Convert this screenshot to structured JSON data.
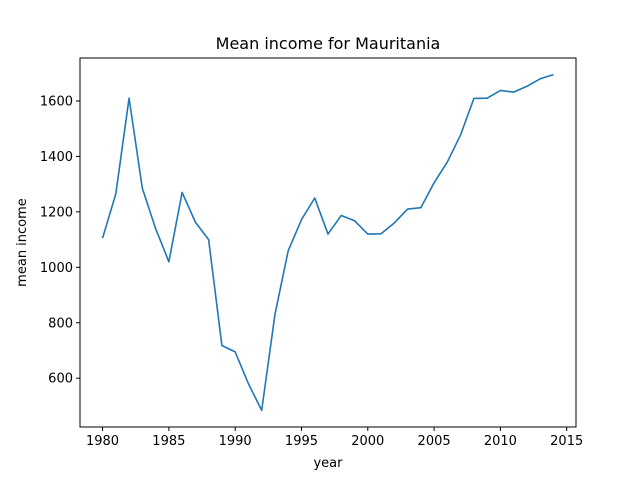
{
  "chart_data": {
    "type": "line",
    "title": "Mean income for Mauritania",
    "xlabel": "year",
    "ylabel": "mean income",
    "xlim": [
      1978.3,
      2015.7
    ],
    "ylim": [
      424,
      1755
    ],
    "xticks": [
      1980,
      1985,
      1990,
      1995,
      2000,
      2005,
      2010,
      2015
    ],
    "yticks": [
      600,
      800,
      1000,
      1200,
      1400,
      1600
    ],
    "grid": false,
    "legend": null,
    "line_color": "#1f77b4",
    "series": [
      {
        "x": [
          1980,
          1981,
          1982,
          1983,
          1984,
          1985,
          1986,
          1987,
          1988,
          1989,
          1990,
          1991,
          1992,
          1993,
          1994,
          1995,
          1996,
          1997,
          1998,
          1999,
          2000,
          2001,
          2002,
          2003,
          2004,
          2005,
          2006,
          2007,
          2008,
          2009,
          2010,
          2011,
          2012,
          2013,
          2014
        ],
        "values": [
          1105,
          1265,
          1610,
          1285,
          1140,
          1020,
          1270,
          1163,
          1100,
          718,
          695,
          580,
          484,
          830,
          1060,
          1172,
          1250,
          1120,
          1187,
          1168,
          1120,
          1121,
          1160,
          1210,
          1215,
          1305,
          1380,
          1478,
          1609,
          1610,
          1638,
          1632,
          1653,
          1680,
          1695
        ]
      }
    ]
  }
}
